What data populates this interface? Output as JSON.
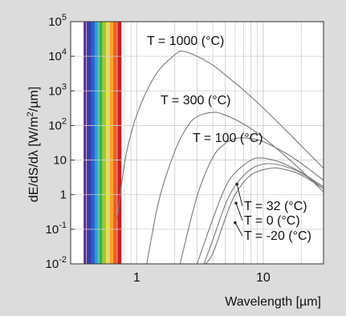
{
  "chart_data": {
    "type": "line",
    "xlabel": "Wavelength [µm]",
    "ylabel": "dE/dS/dλ [W/m²/µm]",
    "x_scale": "log",
    "y_scale": "log",
    "xlim": [
      0.3,
      30
    ],
    "ylim": [
      0.01,
      100000
    ],
    "x_ticks": [
      {
        "value": 1,
        "label": "1"
      },
      {
        "value": 10,
        "label": "10"
      }
    ],
    "y_ticks": [
      {
        "value": 0.01,
        "base": "10",
        "exp": "-2"
      },
      {
        "value": 0.1,
        "base": "10",
        "exp": "-1"
      },
      {
        "value": 1,
        "base": "1",
        "exp": ""
      },
      {
        "value": 10,
        "base": "10",
        "exp": ""
      },
      {
        "value": 100,
        "base": "10",
        "exp": "2"
      },
      {
        "value": 1000,
        "base": "10",
        "exp": "3"
      },
      {
        "value": 10000,
        "base": "10",
        "exp": "4"
      },
      {
        "value": 100000,
        "base": "10",
        "exp": "5"
      }
    ],
    "grid": true,
    "visible_spectrum_band": {
      "x_range": [
        0.38,
        0.75
      ]
    },
    "series": [
      {
        "name": "T = 1000 (°C)",
        "temperature_C": 1000,
        "x": [
          0.7,
          0.8,
          0.9,
          1,
          1.2,
          1.5,
          2,
          2.3,
          3,
          4,
          5,
          7,
          10,
          15,
          20,
          30
        ],
        "y": [
          0.2,
          8,
          57,
          200,
          1000,
          4000,
          11000,
          14000,
          10000,
          5500,
          2900,
          1050,
          320,
          75,
          26,
          5.8
        ]
      },
      {
        "name": "T = 300 (°C)",
        "temperature_C": 300,
        "x": [
          1.2,
          1.5,
          2,
          2.5,
          3,
          4,
          5,
          7,
          10,
          15,
          20,
          30
        ],
        "y": [
          0.01,
          0.7,
          18,
          90,
          180,
          240,
          200,
          110,
          45,
          13,
          5,
          1.2
        ]
      },
      {
        "name": "T = 100 (°C)",
        "temperature_C": 100,
        "x": [
          2.2,
          3,
          4,
          5,
          6,
          7,
          8,
          10,
          15,
          20,
          30
        ],
        "y": [
          0.01,
          0.9,
          12,
          30,
          42,
          44,
          42,
          34,
          16,
          8,
          2.6
        ]
      },
      {
        "name": "T = 32 (°C)",
        "temperature_C": 32,
        "x": [
          3,
          4,
          5,
          6,
          8,
          9.5,
          12,
          15,
          20,
          30
        ],
        "y": [
          0.01,
          0.2,
          1.6,
          4.3,
          10,
          11.5,
          10,
          7.5,
          4.4,
          1.7
        ]
      },
      {
        "name": "T = 0 (°C)",
        "temperature_C": 0,
        "x": [
          3.4,
          4,
          5,
          6,
          8,
          10.6,
          14,
          20,
          30
        ],
        "y": [
          0.01,
          0.05,
          0.5,
          1.8,
          5.5,
          7.8,
          7,
          4.2,
          1.5
        ]
      },
      {
        "name": "T = -20 (°C)",
        "temperature_C": -20,
        "x": [
          3.5,
          4,
          5,
          6,
          8,
          11.4,
          15,
          20,
          30
        ],
        "y": [
          0.01,
          0.02,
          0.2,
          1,
          3.7,
          5.8,
          5.3,
          3.7,
          1.5
        ]
      }
    ],
    "annotations": [
      {
        "text": "T = 1000 (°C)",
        "series": "T = 1000 (°C)"
      },
      {
        "text": "T = 300 (°C)",
        "series": "T = 300 (°C)"
      },
      {
        "text": "T = 100 (°C)",
        "series": "T = 100 (°C)"
      },
      {
        "text": "T = 32 (°C)",
        "series": "T = 32 (°C)"
      },
      {
        "text": "T = 0 (°C)",
        "series": "T = 0 (°C)"
      },
      {
        "text": "T = -20 (°C)",
        "series": "T = -20 (°C)"
      }
    ]
  },
  "colors": {
    "background": "#dcdcdc",
    "plot_background": "#ffffff",
    "grid": "#cfcfcf",
    "curve": "#7a7a7a",
    "axis": "#333333",
    "spectrum": [
      "#5b2c8c",
      "#3f3aa8",
      "#2f5fd0",
      "#2aa3dc",
      "#3bb54a",
      "#9ccc3a",
      "#f2e12c",
      "#f5a623",
      "#ee5a24",
      "#d7191c"
    ]
  }
}
